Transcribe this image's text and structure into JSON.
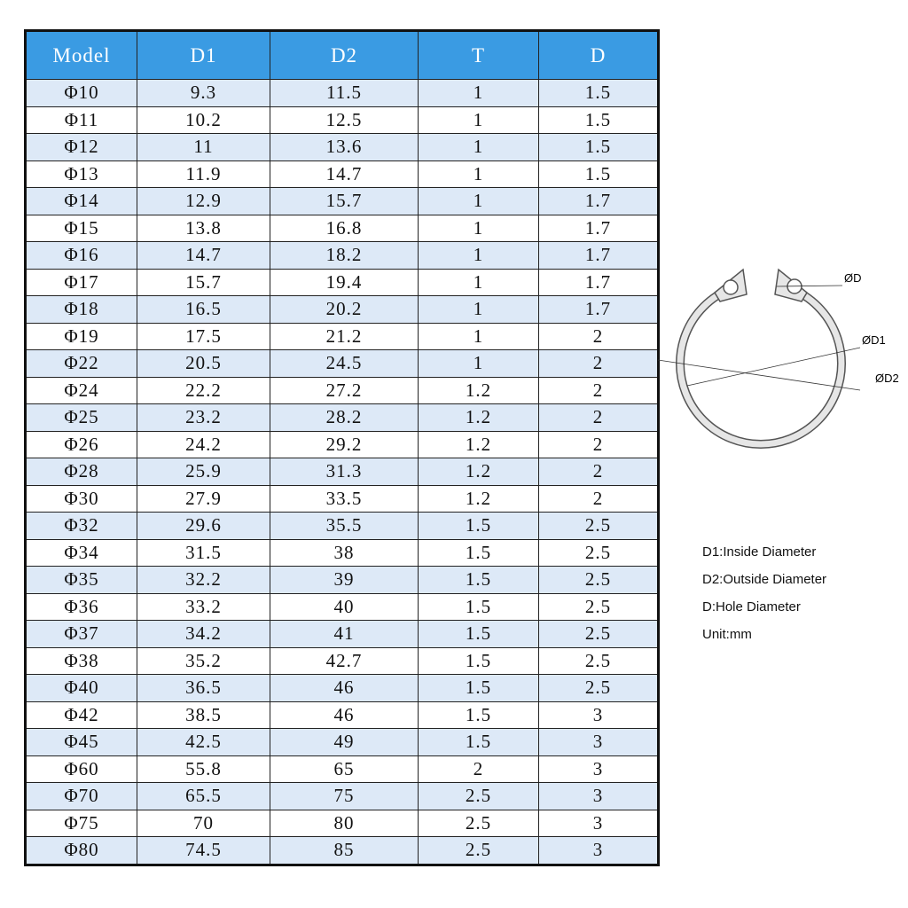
{
  "table": {
    "header": [
      "Model",
      "D1",
      "D2",
      "T",
      "D"
    ],
    "rows": [
      [
        "Φ10",
        "9.3",
        "11.5",
        "1",
        "1.5"
      ],
      [
        "Φ11",
        "10.2",
        "12.5",
        "1",
        "1.5"
      ],
      [
        "Φ12",
        "11",
        "13.6",
        "1",
        "1.5"
      ],
      [
        "Φ13",
        "11.9",
        "14.7",
        "1",
        "1.5"
      ],
      [
        "Φ14",
        "12.9",
        "15.7",
        "1",
        "1.7"
      ],
      [
        "Φ15",
        "13.8",
        "16.8",
        "1",
        "1.7"
      ],
      [
        "Φ16",
        "14.7",
        "18.2",
        "1",
        "1.7"
      ],
      [
        "Φ17",
        "15.7",
        "19.4",
        "1",
        "1.7"
      ],
      [
        "Φ18",
        "16.5",
        "20.2",
        "1",
        "1.7"
      ],
      [
        "Φ19",
        "17.5",
        "21.2",
        "1",
        "2"
      ],
      [
        "Φ22",
        "20.5",
        "24.5",
        "1",
        "2"
      ],
      [
        "Φ24",
        "22.2",
        "27.2",
        "1.2",
        "2"
      ],
      [
        "Φ25",
        "23.2",
        "28.2",
        "1.2",
        "2"
      ],
      [
        "Φ26",
        "24.2",
        "29.2",
        "1.2",
        "2"
      ],
      [
        "Φ28",
        "25.9",
        "31.3",
        "1.2",
        "2"
      ],
      [
        "Φ30",
        "27.9",
        "33.5",
        "1.2",
        "2"
      ],
      [
        "Φ32",
        "29.6",
        "35.5",
        "1.5",
        "2.5"
      ],
      [
        "Φ34",
        "31.5",
        "38",
        "1.5",
        "2.5"
      ],
      [
        "Φ35",
        "32.2",
        "39",
        "1.5",
        "2.5"
      ],
      [
        "Φ36",
        "33.2",
        "40",
        "1.5",
        "2.5"
      ],
      [
        "Φ37",
        "34.2",
        "41",
        "1.5",
        "2.5"
      ],
      [
        "Φ38",
        "35.2",
        "42.7",
        "1.5",
        "2.5"
      ],
      [
        "Φ40",
        "36.5",
        "46",
        "1.5",
        "2.5"
      ],
      [
        "Φ42",
        "38.5",
        "46",
        "1.5",
        "3"
      ],
      [
        "Φ45",
        "42.5",
        "49",
        "1.5",
        "3"
      ],
      [
        "Φ60",
        "55.8",
        "65",
        "2",
        "3"
      ],
      [
        "Φ70",
        "65.5",
        "75",
        "2.5",
        "3"
      ],
      [
        "Φ75",
        "70",
        "80",
        "2.5",
        "3"
      ],
      [
        "Φ80",
        "74.5",
        "85",
        "2.5",
        "3"
      ]
    ]
  },
  "diagram": {
    "labels": [
      "ØD",
      "ØD1",
      "ØD2"
    ]
  },
  "notes": [
    "D1:Inside Diameter",
    "D2:Outside Diameter",
    "D:Hole Diameter",
    "Unit:mm"
  ]
}
